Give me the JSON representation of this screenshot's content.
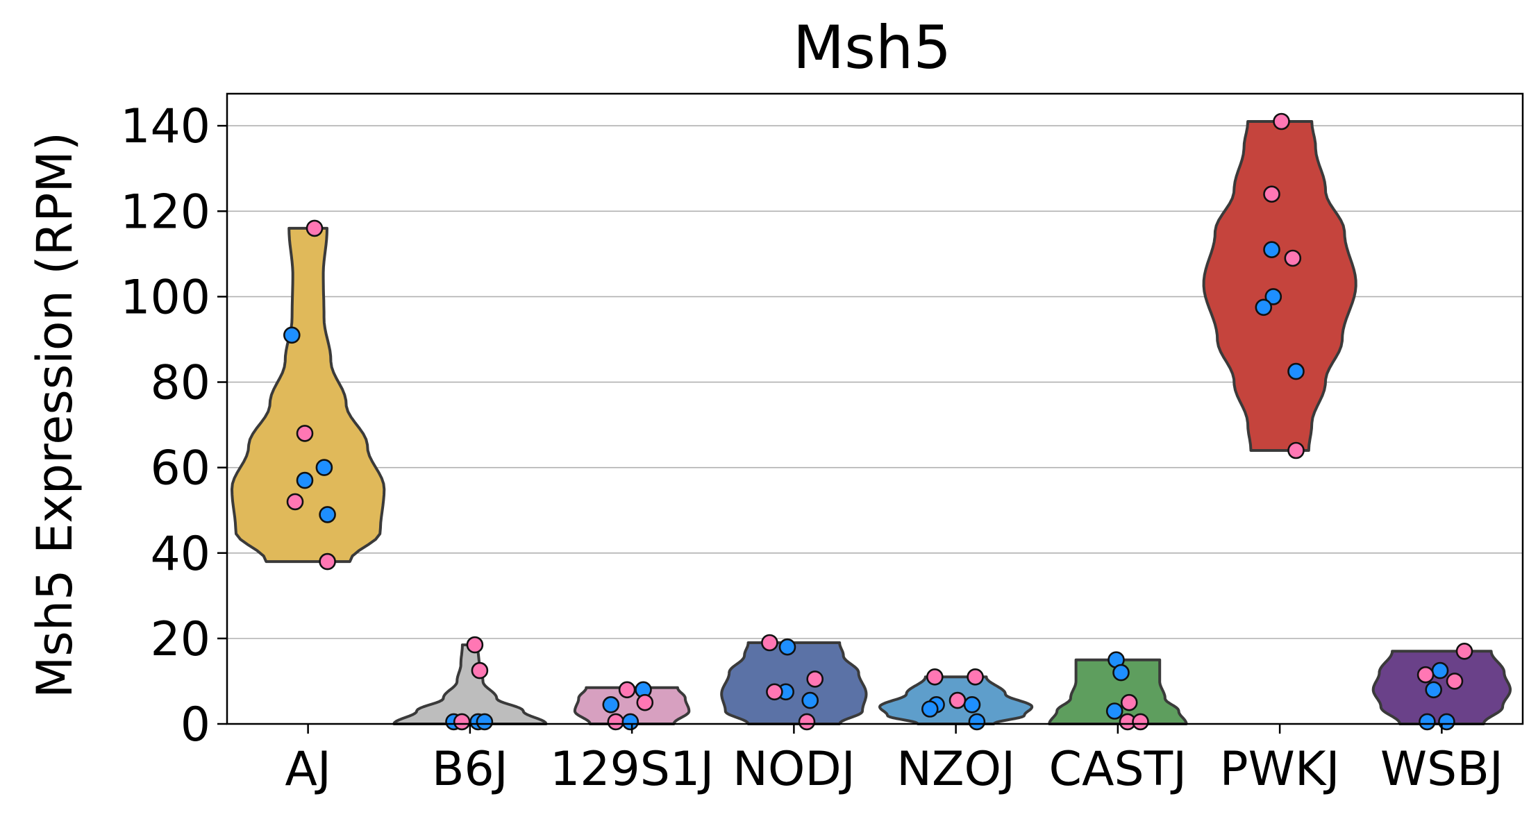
{
  "chart_data": {
    "type": "violin",
    "title": "Msh5",
    "xlabel": "",
    "ylabel": "Msh5 Expression (RPM)",
    "ylim": [
      0,
      147.5
    ],
    "yticks": [
      0,
      20,
      40,
      60,
      80,
      100,
      120,
      140
    ],
    "grid": "horizontal",
    "categories": [
      "AJ",
      "B6J",
      "129S1J",
      "NODJ",
      "NZOJ",
      "CASTJ",
      "PWKJ",
      "WSBJ"
    ],
    "colors": {
      "AJ": "#E0B95A",
      "B6J": "#BDBDBD",
      "129S1J": "#D7A0C0",
      "NODJ": "#5B72A6",
      "NZOJ": "#5E9ECB",
      "CASTJ": "#5E9E5E",
      "PWKJ": "#C5443D",
      "WSBJ": "#6A4189"
    },
    "point_colors": {
      "female": "#FF77B4",
      "male": "#1E8FFF"
    },
    "groups": [
      {
        "name": "AJ",
        "range": [
          38,
          116
        ],
        "profile": [
          [
            38,
            0.55
          ],
          [
            45,
            0.95
          ],
          [
            55,
            1.0
          ],
          [
            65,
            0.78
          ],
          [
            75,
            0.5
          ],
          [
            85,
            0.3
          ],
          [
            95,
            0.21
          ],
          [
            105,
            0.2
          ],
          [
            116,
            0.25
          ]
        ],
        "points": [
          {
            "y": 116,
            "sex": "female",
            "jitter": 0.04
          },
          {
            "y": 91,
            "sex": "male",
            "jitter": -0.1
          },
          {
            "y": 68,
            "sex": "female",
            "jitter": -0.02
          },
          {
            "y": 60,
            "sex": "male",
            "jitter": 0.1
          },
          {
            "y": 57,
            "sex": "male",
            "jitter": -0.02
          },
          {
            "y": 52,
            "sex": "female",
            "jitter": -0.08
          },
          {
            "y": 49,
            "sex": "male",
            "jitter": 0.12
          },
          {
            "y": 38,
            "sex": "female",
            "jitter": 0.12
          }
        ]
      },
      {
        "name": "B6J",
        "range": [
          0,
          18.5
        ],
        "profile": [
          [
            0,
            1.0
          ],
          [
            3,
            0.7
          ],
          [
            6,
            0.35
          ],
          [
            10,
            0.17
          ],
          [
            14,
            0.12
          ],
          [
            18.5,
            0.1
          ]
        ],
        "points": [
          {
            "y": 18.5,
            "sex": "female",
            "jitter": 0.03
          },
          {
            "y": 12.5,
            "sex": "female",
            "jitter": 0.06
          },
          {
            "y": 0.5,
            "sex": "male",
            "jitter": -0.1
          },
          {
            "y": 0.5,
            "sex": "female",
            "jitter": -0.05
          },
          {
            "y": 0.5,
            "sex": "male",
            "jitter": 0.05
          },
          {
            "y": 0.5,
            "sex": "male",
            "jitter": 0.09
          }
        ]
      },
      {
        "name": "129S1J",
        "range": [
          0,
          8.5
        ],
        "profile": [
          [
            0,
            0.55
          ],
          [
            3,
            0.75
          ],
          [
            6,
            0.7
          ],
          [
            8.5,
            0.6
          ]
        ],
        "points": [
          {
            "y": 8,
            "sex": "female",
            "jitter": -0.03
          },
          {
            "y": 8,
            "sex": "male",
            "jitter": 0.07
          },
          {
            "y": 5,
            "sex": "female",
            "jitter": 0.08
          },
          {
            "y": 4.5,
            "sex": "male",
            "jitter": -0.13
          },
          {
            "y": 0.5,
            "sex": "female",
            "jitter": -0.1
          },
          {
            "y": 0.5,
            "sex": "male",
            "jitter": -0.01
          }
        ]
      },
      {
        "name": "NODJ",
        "range": [
          0,
          19
        ],
        "profile": [
          [
            0,
            0.6
          ],
          [
            3,
            0.9
          ],
          [
            7,
            0.95
          ],
          [
            12,
            0.85
          ],
          [
            16,
            0.65
          ],
          [
            19,
            0.6
          ]
        ],
        "points": [
          {
            "y": 19,
            "sex": "female",
            "jitter": -0.15
          },
          {
            "y": 18,
            "sex": "male",
            "jitter": -0.04
          },
          {
            "y": 10.5,
            "sex": "female",
            "jitter": 0.13
          },
          {
            "y": 7.5,
            "sex": "male",
            "jitter": -0.05
          },
          {
            "y": 7.5,
            "sex": "female",
            "jitter": -0.12
          },
          {
            "y": 5.5,
            "sex": "male",
            "jitter": 0.1
          },
          {
            "y": 0.5,
            "sex": "female",
            "jitter": 0.08
          }
        ]
      },
      {
        "name": "NZOJ",
        "range": [
          0,
          11
        ],
        "profile": [
          [
            0,
            0.5
          ],
          [
            2,
            0.9
          ],
          [
            4,
            1.0
          ],
          [
            7,
            0.65
          ],
          [
            11,
            0.4
          ]
        ],
        "points": [
          {
            "y": 11,
            "sex": "female",
            "jitter": -0.13
          },
          {
            "y": 11,
            "sex": "female",
            "jitter": 0.12
          },
          {
            "y": 5.5,
            "sex": "female",
            "jitter": 0.01
          },
          {
            "y": 4.5,
            "sex": "male",
            "jitter": -0.12
          },
          {
            "y": 4.5,
            "sex": "male",
            "jitter": 0.1
          },
          {
            "y": 3.5,
            "sex": "male",
            "jitter": -0.16
          },
          {
            "y": 0.5,
            "sex": "male",
            "jitter": 0.13
          }
        ]
      },
      {
        "name": "CASTJ",
        "range": [
          0,
          15
        ],
        "profile": [
          [
            0,
            0.9
          ],
          [
            3,
            0.8
          ],
          [
            6,
            0.62
          ],
          [
            10,
            0.55
          ],
          [
            15,
            0.55
          ]
        ],
        "points": [
          {
            "y": 15,
            "sex": "male",
            "jitter": -0.01
          },
          {
            "y": 12,
            "sex": "male",
            "jitter": 0.02
          },
          {
            "y": 5,
            "sex": "female",
            "jitter": 0.07
          },
          {
            "y": 3,
            "sex": "male",
            "jitter": -0.02
          },
          {
            "y": 0.5,
            "sex": "female",
            "jitter": 0.06
          },
          {
            "y": 0.5,
            "sex": "female",
            "jitter": 0.14
          }
        ]
      },
      {
        "name": "PWKJ",
        "range": [
          64,
          141
        ],
        "profile": [
          [
            64,
            0.38
          ],
          [
            70,
            0.42
          ],
          [
            80,
            0.6
          ],
          [
            90,
            0.82
          ],
          [
            103,
            1.0
          ],
          [
            115,
            0.85
          ],
          [
            125,
            0.6
          ],
          [
            135,
            0.47
          ],
          [
            141,
            0.42
          ]
        ],
        "points": [
          {
            "y": 141,
            "sex": "female",
            "jitter": 0.01
          },
          {
            "y": 124,
            "sex": "female",
            "jitter": -0.05
          },
          {
            "y": 111,
            "sex": "male",
            "jitter": -0.05
          },
          {
            "y": 109,
            "sex": "female",
            "jitter": 0.08
          },
          {
            "y": 100,
            "sex": "male",
            "jitter": -0.04
          },
          {
            "y": 97.5,
            "sex": "male",
            "jitter": -0.1
          },
          {
            "y": 82.5,
            "sex": "male",
            "jitter": 0.1
          },
          {
            "y": 64,
            "sex": "female",
            "jitter": 0.1
          }
        ]
      },
      {
        "name": "WSBJ",
        "range": [
          0,
          17
        ],
        "profile": [
          [
            0,
            0.55
          ],
          [
            4,
            0.8
          ],
          [
            8,
            0.9
          ],
          [
            12,
            0.82
          ],
          [
            17,
            0.65
          ]
        ],
        "points": [
          {
            "y": 17,
            "sex": "female",
            "jitter": 0.14
          },
          {
            "y": 12.5,
            "sex": "male",
            "jitter": -0.01
          },
          {
            "y": 11.5,
            "sex": "female",
            "jitter": -0.1
          },
          {
            "y": 10,
            "sex": "female",
            "jitter": 0.08
          },
          {
            "y": 8,
            "sex": "male",
            "jitter": -0.05
          },
          {
            "y": 0.5,
            "sex": "male",
            "jitter": -0.09
          },
          {
            "y": 0.5,
            "sex": "male",
            "jitter": 0.03
          }
        ]
      }
    ]
  }
}
